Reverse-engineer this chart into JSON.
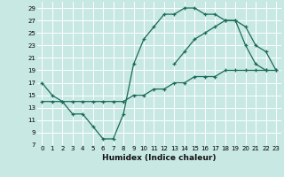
{
  "line1_x": [
    0,
    1,
    2,
    3,
    4,
    5,
    6,
    7,
    8,
    9,
    10,
    11,
    12,
    13,
    14,
    15,
    16,
    17,
    18,
    19,
    20,
    21,
    22,
    23
  ],
  "line1_y": [
    17,
    15,
    14,
    12,
    12,
    10,
    8,
    8,
    12,
    20,
    24,
    26,
    28,
    28,
    29,
    29,
    28,
    28,
    27,
    27,
    23,
    20,
    19,
    null
  ],
  "line2_x": [
    0,
    1,
    2,
    3,
    4,
    5,
    6,
    7,
    8,
    9,
    10,
    11,
    12,
    13,
    14,
    15,
    16,
    17,
    18,
    19,
    20,
    21,
    22,
    23
  ],
  "line2_y": [
    null,
    null,
    null,
    null,
    null,
    null,
    null,
    null,
    null,
    null,
    null,
    null,
    null,
    20,
    22,
    24,
    25,
    26,
    27,
    27,
    26,
    23,
    22,
    19
  ],
  "line3_x": [
    0,
    1,
    2,
    3,
    4,
    5,
    6,
    7,
    8,
    9,
    10,
    11,
    12,
    13,
    14,
    15,
    16,
    17,
    18,
    19,
    20,
    21,
    22,
    23
  ],
  "line3_y": [
    14,
    14,
    14,
    14,
    14,
    14,
    14,
    14,
    14,
    15,
    15,
    16,
    16,
    17,
    17,
    18,
    18,
    18,
    19,
    19,
    19,
    19,
    19,
    19
  ],
  "color": "#1a6b5a",
  "bg_color": "#c8e8e4",
  "grid_color": "#ffffff",
  "xlabel": "Humidex (Indice chaleur)",
  "ylim": [
    7,
    30
  ],
  "xlim": [
    -0.5,
    23.5
  ],
  "yticks": [
    7,
    9,
    11,
    13,
    15,
    17,
    19,
    21,
    23,
    25,
    27,
    29
  ],
  "xticks": [
    0,
    1,
    2,
    3,
    4,
    5,
    6,
    7,
    8,
    9,
    10,
    11,
    12,
    13,
    14,
    15,
    16,
    17,
    18,
    19,
    20,
    21,
    22,
    23
  ],
  "xlabel_fontsize": 6.5,
  "tick_fontsize": 5.0,
  "linewidth": 0.9,
  "markersize": 3.5
}
